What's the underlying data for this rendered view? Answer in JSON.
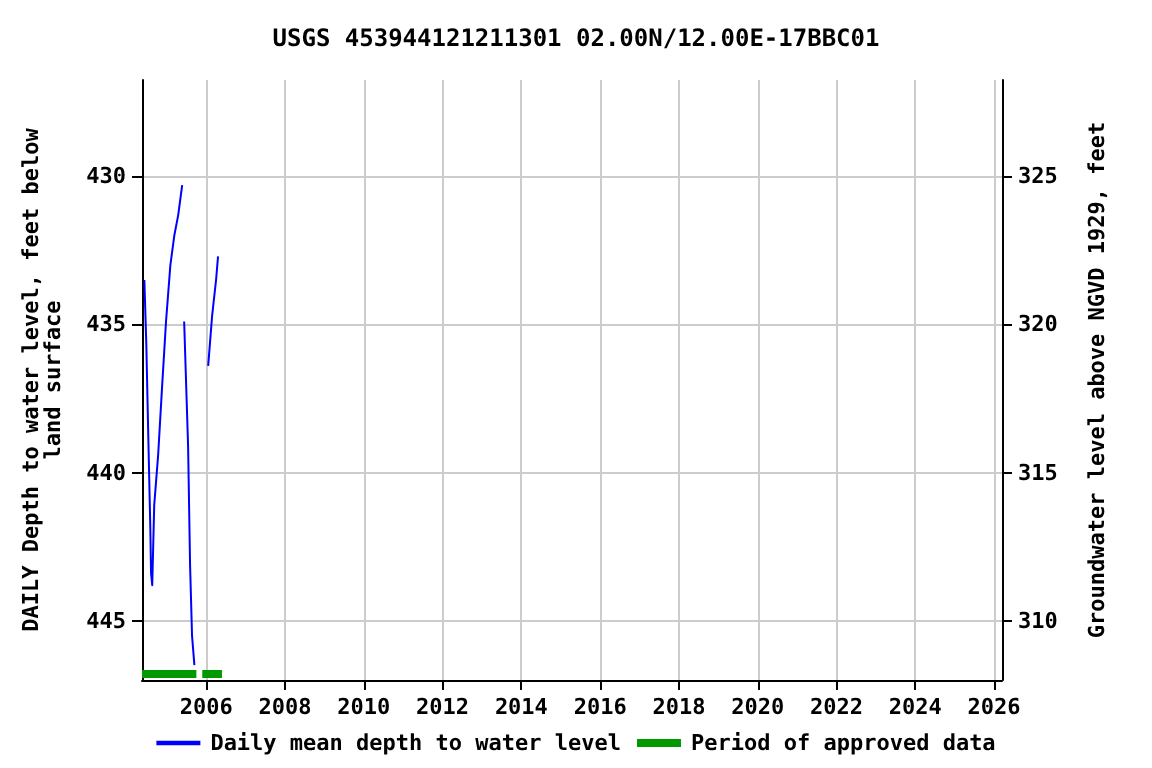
{
  "chart_data": {
    "type": "line",
    "title": "USGS 453944121211301 02.00N/12.00E-17BBC01",
    "ylabel": "DAILY Depth to water level, feet below\nland surface",
    "y2label": "Groundwater level above NGVD 1929, feet",
    "xlim": [
      2004.37,
      2026.2
    ],
    "xticks": [
      2006,
      2008,
      2010,
      2012,
      2014,
      2016,
      2018,
      2020,
      2022,
      2024,
      2026
    ],
    "ylim": [
      447,
      426.75
    ],
    "yticks": [
      430,
      435,
      440,
      445
    ],
    "y2lim": [
      308,
      328.25
    ],
    "y2ticks": [
      310,
      315,
      320,
      325
    ],
    "grid": true,
    "legend": "bottom",
    "marker": "none",
    "line_style": "solid",
    "series": [
      {
        "name": "Daily mean depth to water level",
        "color": "#0000ff",
        "x": [
          2004.43,
          2004.48,
          2004.53,
          2004.58,
          2004.6,
          2004.63,
          2004.68,
          2004.78,
          2004.88,
          2004.98,
          2005.09,
          2005.19,
          2005.29,
          2005.39,
          2005.41,
          2005.44,
          2005.54,
          2005.59,
          2005.64,
          2005.7,
          2005.8,
          2006.05,
          2006.15,
          2006.25,
          2006.3
        ],
        "values": [
          433.5,
          435.7,
          438.8,
          441.8,
          443.4,
          443.8,
          441.1,
          439.4,
          437.1,
          434.9,
          433.0,
          432.0,
          431.3,
          430.3,
          null,
          434.9,
          439.1,
          443.1,
          445.5,
          446.5,
          null,
          436.4,
          434.7,
          433.5,
          432.7
        ]
      },
      {
        "name": "Period of approved data",
        "color": "#009900",
        "x": [
          2004.37,
          2005.75,
          2005.8,
          2005.9,
          2006.4
        ],
        "values": [
          446.8,
          446.8,
          null,
          446.8,
          446.8
        ]
      }
    ]
  }
}
